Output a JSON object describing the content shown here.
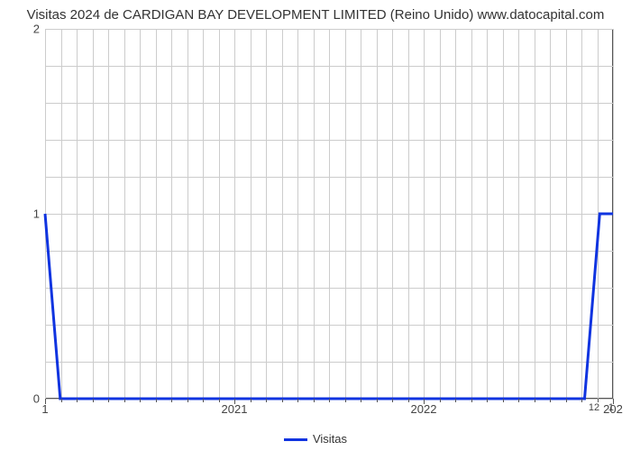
{
  "title": "Visitas 2024 de CARDIGAN BAY DEVELOPMENT LIMITED (Reino Unido) www.datocapital.com",
  "chart": {
    "type": "line",
    "background_color": "#ffffff",
    "grid_color": "#cccccc",
    "axis_color": "#555555",
    "line_color": "#1034e0",
    "line_width": 3,
    "title_fontsize": 15,
    "tick_fontsize": 13,
    "ylim": [
      0,
      2
    ],
    "y_major_ticks": [
      0,
      1,
      2
    ],
    "y_minor_tick_count_between": 4,
    "xlim": [
      2020,
      2023
    ],
    "x_major_ticks": [
      2020,
      2021,
      2022,
      2023
    ],
    "x_major_tick_labels": [
      "1",
      "2021",
      "2022",
      "202"
    ],
    "x_minor_ticks_per_year": 12,
    "extra_x_labels": [
      {
        "x": 2022.9,
        "label": "12"
      },
      {
        "x": 2022.99,
        "label": "1"
      }
    ],
    "series": {
      "name": "Visitas",
      "points": [
        {
          "x": 2020.0,
          "y": 1.0
        },
        {
          "x": 2020.08,
          "y": 0.0
        },
        {
          "x": 2022.85,
          "y": 0.0
        },
        {
          "x": 2022.93,
          "y": 1.0
        },
        {
          "x": 2023.0,
          "y": 1.0
        }
      ]
    },
    "legend": {
      "label": "Visitas",
      "position": "bottom-center"
    }
  }
}
